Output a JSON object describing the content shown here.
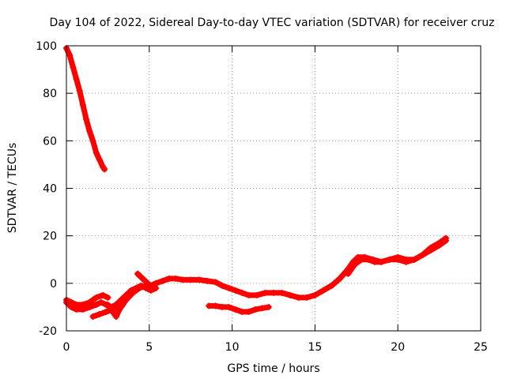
{
  "chart_data": {
    "type": "scatter",
    "title": "Day 104 of 2022, Sidereal Day-to-day VTEC variation (SDTVAR) for receiver cruz",
    "xlabel": "GPS time / hours",
    "ylabel": "SDTVAR / TECUs",
    "xlim": [
      0,
      25
    ],
    "ylim": [
      -20,
      100
    ],
    "xticks": [
      0,
      5,
      10,
      15,
      20,
      25
    ],
    "yticks": [
      -20,
      0,
      20,
      40,
      60,
      80,
      100
    ],
    "grid": true,
    "series_color": "#ff0000",
    "marker": "plus",
    "series": [
      {
        "name": "segment-1",
        "x": [
          0.0,
          0.2,
          0.4,
          0.6,
          0.8,
          1.0,
          1.2,
          1.4,
          1.6,
          1.8,
          2.0,
          2.2,
          2.3
        ],
        "y": [
          99,
          96,
          91,
          86,
          81,
          75,
          69,
          64,
          60,
          55,
          52,
          49,
          48
        ]
      },
      {
        "name": "segment-2",
        "x": [
          0.0,
          0.3,
          0.6,
          1.0,
          1.4,
          1.8,
          2.1,
          2.4,
          2.7,
          3.0,
          3.3,
          3.6,
          3.9,
          4.2,
          4.5,
          4.8,
          5.1,
          5.4
        ],
        "y": [
          -8,
          -10,
          -11,
          -11,
          -10,
          -9,
          -8,
          -9,
          -10,
          -9,
          -7,
          -5,
          -3,
          -2,
          -1,
          -2,
          -3,
          -2
        ]
      },
      {
        "name": "segment-3",
        "x": [
          0.0,
          0.3,
          0.6,
          1.0,
          1.4,
          1.8,
          2.2,
          2.5
        ],
        "y": [
          -7,
          -8,
          -9,
          -9,
          -8,
          -6,
          -5,
          -6
        ]
      },
      {
        "name": "segment-4",
        "x": [
          1.6,
          2.0,
          2.4,
          2.8,
          3.2,
          3.6,
          4.0,
          4.4,
          4.8
        ],
        "y": [
          -14,
          -13,
          -12,
          -11,
          -9,
          -7,
          -4,
          -2,
          -1
        ]
      },
      {
        "name": "segment-5",
        "x": [
          2.5,
          2.8,
          3.0,
          3.2,
          3.5
        ],
        "y": [
          -9,
          -12,
          -14,
          -11,
          -8
        ]
      },
      {
        "name": "segment-6",
        "x": [
          4.3,
          4.6,
          4.9,
          5.1,
          5.4,
          5.8,
          6.2,
          6.6,
          7.0,
          7.5,
          8.0,
          8.5,
          9.0,
          9.4,
          9.8,
          10.2,
          10.6,
          11.0,
          11.5,
          12.0,
          12.5,
          13.0,
          13.5,
          14.0,
          14.5,
          15.0,
          15.5,
          16.0,
          16.5,
          17.0,
          17.3,
          17.6,
          18.0,
          18.5,
          19.0,
          19.5,
          20.0,
          20.5,
          21.0,
          21.5,
          22.0,
          22.5,
          22.9
        ],
        "y": [
          4,
          2,
          0,
          -1,
          0,
          1,
          2,
          2,
          1.5,
          1.5,
          1.5,
          1,
          0.5,
          -1,
          -2,
          -3,
          -4,
          -5,
          -5,
          -4,
          -4,
          -4,
          -5,
          -6,
          -6,
          -5,
          -3,
          -1,
          2,
          6,
          9,
          11,
          11,
          10,
          9,
          10,
          10,
          9,
          10,
          12,
          14,
          16,
          18
        ]
      },
      {
        "name": "segment-7",
        "x": [
          17.0,
          17.4,
          17.8,
          18.2,
          18.6,
          19.0,
          19.5,
          20.0,
          20.5,
          21.0,
          21.5,
          22.0,
          22.5,
          22.9
        ],
        "y": [
          4,
          8,
          10,
          10,
          9,
          9,
          10,
          11,
          10,
          10,
          12,
          15,
          17,
          19
        ]
      },
      {
        "name": "segment-8",
        "x": [
          8.6,
          9.0,
          9.4,
          9.8,
          10.2,
          10.6,
          11.0,
          11.4,
          11.8,
          12.2
        ],
        "y": [
          -9.5,
          -9.5,
          -10,
          -10,
          -11,
          -12,
          -12,
          -11,
          -10.5,
          -10
        ]
      }
    ]
  }
}
